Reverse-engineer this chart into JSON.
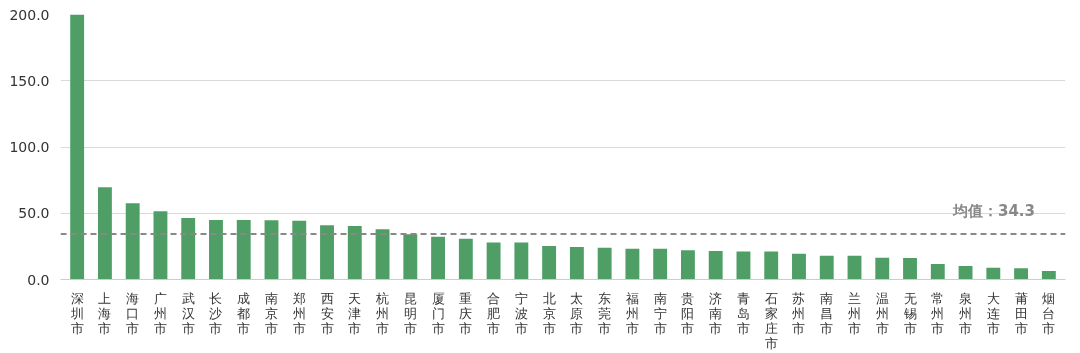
{
  "chart_data": {
    "type": "bar",
    "categories": [
      "深圳市",
      "上海市",
      "海口市",
      "广州市",
      "武汉市",
      "长沙市",
      "成都市",
      "南京市",
      "郑州市",
      "西安市",
      "天津市",
      "杭州市",
      "昆明市",
      "厦门市",
      "重庆市",
      "合肥市",
      "宁波市",
      "北京市",
      "太原市",
      "东莞市",
      "福州市",
      "南宁市",
      "贵阳市",
      "济南市",
      "青岛市",
      "石家庄市",
      "苏州市",
      "南昌市",
      "兰州市",
      "温州市",
      "无锡市",
      "常州市",
      "泉州市",
      "大连市",
      "莆田市",
      "烟台市"
    ],
    "values": [
      200,
      69.6,
      57.6,
      51.5,
      46.4,
      45,
      45,
      44.8,
      44.3,
      41,
      40.3,
      37.9,
      34.1,
      32.3,
      30.7,
      28,
      28,
      25.3,
      24.5,
      24,
      23.2,
      23.2,
      22.1,
      21.6,
      21.1,
      21.1,
      19.5,
      17.9,
      17.9,
      16.5,
      16.3,
      11.7,
      10.1,
      8.8,
      8.5,
      6.4
    ],
    "color": "#4f9e66",
    "ylim": [
      0,
      200
    ],
    "yticks": [
      {
        "value": 0,
        "label": "0.0"
      },
      {
        "value": 50,
        "label": "50.0"
      },
      {
        "value": 100,
        "label": "100.0"
      },
      {
        "value": 150,
        "label": "150.0"
      },
      {
        "value": 200,
        "label": "200.0"
      }
    ],
    "grid": "y",
    "ref_lines": [
      {
        "axis": "y",
        "value": 34.3,
        "label": "均值：34.3",
        "color": "#888888",
        "line_style": "dashed"
      }
    ]
  }
}
